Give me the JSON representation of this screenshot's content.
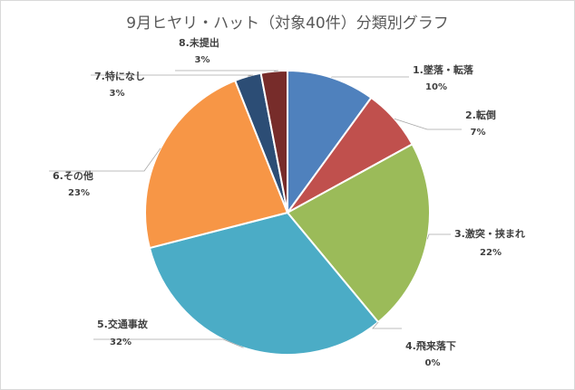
{
  "chart_data": {
    "type": "pie",
    "title": "9月ヒヤリ・ハット（対象40件）分類別グラフ",
    "categories": [
      "1.墜落・転落",
      "2.転倒",
      "3.激突・挟まれ",
      "4.飛来落下",
      "5.交通事故",
      "6.その他",
      "7.特になし",
      "8.未提出"
    ],
    "values": [
      10,
      7,
      22,
      0,
      32,
      23,
      3,
      3
    ],
    "value_labels": [
      "10%",
      "7%",
      "22%",
      "0%",
      "32%",
      "23%",
      "3%",
      "3%"
    ],
    "colors": [
      "#4F81BD",
      "#C0504D",
      "#9BBB59",
      "#8064A2",
      "#4BACC6",
      "#F79646",
      "#2C4D75",
      "#772C2A"
    ],
    "start_angle_deg": 0,
    "direction": "clockwise",
    "legend": "none"
  }
}
